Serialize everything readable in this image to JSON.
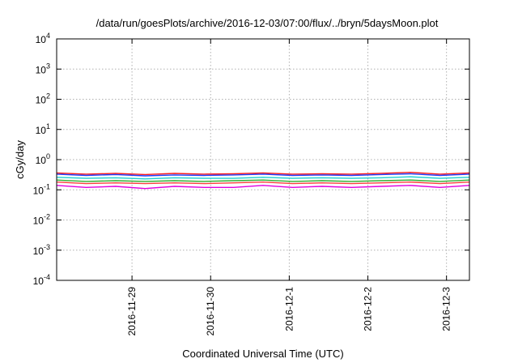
{
  "chart_data": {
    "type": "line",
    "title": "/data/run/goesPlots/archive/2016-12-03/07:00/flux/../bryn/5daysMoon.plot",
    "xlabel": "Coordinated Universal Time (UTC)",
    "ylabel": "cGy/day",
    "yscale": "log",
    "ylim": [
      0.0001,
      10000
    ],
    "xlim": [
      "2016-11-28 01:00",
      "2016-12-03 07:00"
    ],
    "grid": true,
    "legend": "none",
    "yticks": [
      {
        "base": "10",
        "exp": "-4",
        "value": 0.0001
      },
      {
        "base": "10",
        "exp": "-3",
        "value": 0.001
      },
      {
        "base": "10",
        "exp": "-2",
        "value": 0.01
      },
      {
        "base": "10",
        "exp": "-1",
        "value": 0.1
      },
      {
        "base": "10",
        "exp": "0",
        "value": 1
      },
      {
        "base": "10",
        "exp": "1",
        "value": 10
      },
      {
        "base": "10",
        "exp": "2",
        "value": 100
      },
      {
        "base": "10",
        "exp": "3",
        "value": 1000
      },
      {
        "base": "10",
        "exp": "4",
        "value": 10000
      }
    ],
    "xticks": [
      "2016-11-29",
      "2016-11-30",
      "2016-12-1",
      "2016-12-2",
      "2016-12-3"
    ],
    "x": [
      "2016-11-28 01:00",
      "2016-11-28 10:00",
      "2016-11-28 19:00",
      "2016-11-29 04:00",
      "2016-11-29 13:00",
      "2016-11-29 22:00",
      "2016-11-30 07:00",
      "2016-11-30 16:00",
      "2016-12-01 01:00",
      "2016-12-01 10:00",
      "2016-12-01 19:00",
      "2016-12-02 04:00",
      "2016-12-02 13:00",
      "2016-12-02 22:00",
      "2016-12-03 07:00"
    ],
    "series": [
      {
        "color": "#ff1f1f",
        "values": [
          0.36,
          0.33,
          0.35,
          0.32,
          0.35,
          0.33,
          0.34,
          0.36,
          0.33,
          0.34,
          0.33,
          0.35,
          0.38,
          0.33,
          0.36
        ]
      },
      {
        "color": "#1f3fff",
        "values": [
          0.33,
          0.3,
          0.32,
          0.29,
          0.31,
          0.3,
          0.31,
          0.33,
          0.3,
          0.31,
          0.3,
          0.32,
          0.34,
          0.3,
          0.33
        ]
      },
      {
        "color": "#1fd0d0",
        "values": [
          0.26,
          0.24,
          0.25,
          0.23,
          0.25,
          0.24,
          0.24,
          0.26,
          0.24,
          0.25,
          0.24,
          0.25,
          0.27,
          0.24,
          0.26
        ]
      },
      {
        "color": "#2fb02f",
        "values": [
          0.21,
          0.19,
          0.2,
          0.19,
          0.2,
          0.19,
          0.2,
          0.21,
          0.19,
          0.2,
          0.19,
          0.2,
          0.21,
          0.19,
          0.21
        ]
      },
      {
        "color": "#ff3f3f",
        "values": [
          0.18,
          0.16,
          0.17,
          0.16,
          0.17,
          0.16,
          0.17,
          0.18,
          0.16,
          0.17,
          0.16,
          0.17,
          0.18,
          0.16,
          0.18
        ]
      },
      {
        "color": "#e000e0",
        "values": [
          0.14,
          0.12,
          0.13,
          0.11,
          0.13,
          0.12,
          0.12,
          0.14,
          0.12,
          0.13,
          0.12,
          0.13,
          0.14,
          0.12,
          0.14
        ]
      }
    ]
  }
}
